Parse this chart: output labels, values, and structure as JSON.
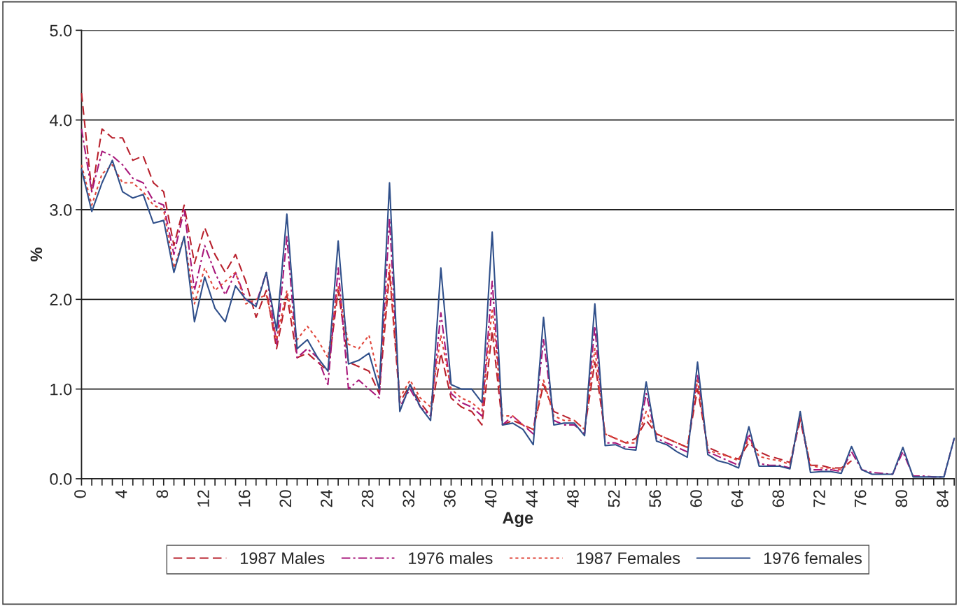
{
  "chart_data": {
    "type": "line",
    "xlabel": "Age",
    "ylabel": "%",
    "x": [
      0,
      1,
      2,
      3,
      4,
      5,
      6,
      7,
      8,
      9,
      10,
      11,
      12,
      13,
      14,
      15,
      16,
      17,
      18,
      19,
      20,
      21,
      22,
      23,
      24,
      25,
      26,
      27,
      28,
      29,
      30,
      31,
      32,
      33,
      34,
      35,
      36,
      37,
      38,
      39,
      40,
      41,
      42,
      43,
      44,
      45,
      46,
      47,
      48,
      49,
      50,
      51,
      52,
      53,
      54,
      55,
      56,
      57,
      58,
      59,
      60,
      61,
      62,
      63,
      64,
      65,
      66,
      67,
      68,
      69,
      70,
      71,
      72,
      73,
      74,
      75,
      76,
      77,
      78,
      79,
      80,
      81,
      82,
      83,
      84,
      85
    ],
    "xlim": [
      0,
      85
    ],
    "xticks": [
      0,
      {
        "value": 1,
        "label": null
      },
      {
        "value": 2,
        "label": null
      },
      {
        "value": 3,
        "label": null
      },
      4,
      {
        "value": 5,
        "label": null
      },
      {
        "value": 6,
        "label": null
      },
      {
        "value": 7,
        "label": null
      },
      8,
      {
        "value": 9,
        "label": null
      },
      {
        "value": 10,
        "label": null
      },
      {
        "value": 11,
        "label": null
      },
      12,
      {
        "value": 13,
        "label": null
      },
      {
        "value": 14,
        "label": null
      },
      {
        "value": 15,
        "label": null
      },
      16,
      {
        "value": 17,
        "label": null
      },
      {
        "value": 18,
        "label": null
      },
      {
        "value": 19,
        "label": null
      },
      20,
      {
        "value": 21,
        "label": null
      },
      {
        "value": 22,
        "label": null
      },
      {
        "value": 23,
        "label": null
      },
      24,
      {
        "value": 25,
        "label": null
      },
      {
        "value": 26,
        "label": null
      },
      {
        "value": 27,
        "label": null
      },
      28,
      {
        "value": 29,
        "label": null
      },
      {
        "value": 30,
        "label": null
      },
      {
        "value": 31,
        "label": null
      },
      32,
      {
        "value": 33,
        "label": null
      },
      {
        "value": 34,
        "label": null
      },
      {
        "value": 35,
        "label": null
      },
      36,
      {
        "value": 37,
        "label": null
      },
      {
        "value": 38,
        "label": null
      },
      {
        "value": 39,
        "label": null
      },
      40,
      {
        "value": 41,
        "label": null
      },
      {
        "value": 42,
        "label": null
      },
      {
        "value": 43,
        "label": null
      },
      44,
      {
        "value": 45,
        "label": null
      },
      {
        "value": 46,
        "label": null
      },
      {
        "value": 47,
        "label": null
      },
      48,
      {
        "value": 49,
        "label": null
      },
      {
        "value": 50,
        "label": null
      },
      {
        "value": 51,
        "label": null
      },
      52,
      {
        "value": 53,
        "label": null
      },
      {
        "value": 54,
        "label": null
      },
      {
        "value": 55,
        "label": null
      },
      56,
      {
        "value": 57,
        "label": null
      },
      {
        "value": 58,
        "label": null
      },
      {
        "value": 59,
        "label": null
      },
      60,
      {
        "value": 61,
        "label": null
      },
      {
        "value": 62,
        "label": null
      },
      {
        "value": 63,
        "label": null
      },
      64,
      {
        "value": 65,
        "label": null
      },
      {
        "value": 66,
        "label": null
      },
      {
        "value": 67,
        "label": null
      },
      68,
      {
        "value": 69,
        "label": null
      },
      {
        "value": 70,
        "label": null
      },
      {
        "value": 71,
        "label": null
      },
      72,
      {
        "value": 73,
        "label": null
      },
      {
        "value": 74,
        "label": null
      },
      {
        "value": 75,
        "label": null
      },
      76,
      {
        "value": 77,
        "label": null
      },
      {
        "value": 78,
        "label": null
      },
      {
        "value": 79,
        "label": null
      },
      80,
      {
        "value": 81,
        "label": null
      },
      {
        "value": 82,
        "label": null
      },
      {
        "value": 83,
        "label": null
      },
      84,
      {
        "value": 85,
        "label": null
      }
    ],
    "ylim": [
      0,
      5
    ],
    "yticks": [
      {
        "value": 0,
        "label": "0.0"
      },
      {
        "value": 1,
        "label": "1.0"
      },
      {
        "value": 2,
        "label": "2.0"
      },
      {
        "value": 3,
        "label": "3.0"
      },
      {
        "value": 4,
        "label": "4.0"
      },
      {
        "value": 5,
        "label": "5.0"
      }
    ],
    "grid": "y",
    "legend": "bottom",
    "marker": "none",
    "series": [
      {
        "name": "1987 Males",
        "color": "#b8202c",
        "line_style": "dashed",
        "x": [
          0,
          1,
          2,
          3,
          4,
          5,
          6,
          7,
          8,
          9,
          10,
          11,
          12,
          13,
          14,
          15,
          16,
          17,
          18,
          19,
          20,
          21,
          22,
          23,
          24,
          25,
          26,
          27,
          28,
          29,
          30,
          31,
          32,
          33,
          34,
          35,
          36,
          37,
          38,
          39,
          40,
          41,
          42,
          43,
          44,
          45,
          46,
          47,
          48,
          49,
          50,
          51,
          52,
          53,
          54,
          55,
          56,
          57,
          58,
          59,
          60,
          61,
          62,
          63,
          64,
          65,
          66,
          67,
          68,
          69,
          70,
          71,
          72,
          73,
          74,
          75
        ],
        "values": [
          4.3,
          3.2,
          3.9,
          3.8,
          3.8,
          3.55,
          3.6,
          3.3,
          3.2,
          2.6,
          3.05,
          2.4,
          2.8,
          2.5,
          2.3,
          2.5,
          2.2,
          1.8,
          2.1,
          1.45,
          2.05,
          1.35,
          1.4,
          1.3,
          1.2,
          2.1,
          1.3,
          1.25,
          1.2,
          0.95,
          2.3,
          0.85,
          1.05,
          0.85,
          0.7,
          1.4,
          0.9,
          0.8,
          0.75,
          0.6,
          1.65,
          0.6,
          0.65,
          0.6,
          0.55,
          1.05,
          0.75,
          0.7,
          0.65,
          0.55,
          1.3,
          0.5,
          0.45,
          0.4,
          0.45,
          0.65,
          0.5,
          0.45,
          0.4,
          0.35,
          1.0,
          0.35,
          0.3,
          0.25,
          0.22,
          0.4,
          0.3,
          0.25,
          0.22,
          0.18,
          0.65,
          0.15,
          0.15,
          0.12,
          0.12,
          0.2
        ]
      },
      {
        "name": "1976 males",
        "color": "#a8177a",
        "line_style": "dashdot",
        "values": [
          3.9,
          3.2,
          3.65,
          3.6,
          3.5,
          3.35,
          3.3,
          3.1,
          3.05,
          2.5,
          3.0,
          2.1,
          2.6,
          2.3,
          2.05,
          2.3,
          2.0,
          1.95,
          2.3,
          1.5,
          2.7,
          1.35,
          1.45,
          1.35,
          1.05,
          2.35,
          1.0,
          1.1,
          1.0,
          0.9,
          2.9,
          0.8,
          1.0,
          0.8,
          0.7,
          1.85,
          0.95,
          0.85,
          0.8,
          0.7,
          2.2,
          0.6,
          0.7,
          0.6,
          0.5,
          1.55,
          0.65,
          0.6,
          0.6,
          0.5,
          1.7,
          0.4,
          0.4,
          0.35,
          0.35,
          0.95,
          0.45,
          0.4,
          0.35,
          0.3,
          1.15,
          0.3,
          0.25,
          0.2,
          0.15,
          0.5,
          0.17,
          0.15,
          0.15,
          0.12,
          0.7,
          0.1,
          0.1,
          0.1,
          0.08,
          0.3,
          0.1,
          0.07,
          0.06,
          0.05,
          0.3,
          0.03,
          0.03,
          0.02,
          0.02,
          0.45
        ]
      },
      {
        "name": "1987 Females",
        "color": "#e0453a",
        "line_style": "dotted",
        "x": [
          0,
          1,
          2,
          3,
          4,
          5,
          6,
          7,
          8,
          9,
          10,
          11,
          12,
          13,
          14,
          15,
          16,
          17,
          18,
          19,
          20,
          21,
          22,
          23,
          24,
          25,
          26,
          27,
          28,
          29,
          30,
          31,
          32,
          33,
          34,
          35,
          36,
          37,
          38,
          39,
          40,
          41,
          42,
          43,
          44,
          45,
          46,
          47,
          48,
          49,
          50,
          51,
          52,
          53,
          54,
          55,
          56,
          57,
          58,
          59,
          60,
          61,
          62,
          63,
          64,
          65,
          66,
          67,
          68,
          69,
          70,
          71,
          72,
          73,
          74,
          75
        ],
        "values": [
          3.5,
          3.05,
          3.4,
          3.5,
          3.3,
          3.3,
          3.2,
          3.05,
          3.0,
          2.35,
          2.7,
          1.95,
          2.35,
          2.1,
          2.2,
          2.3,
          1.95,
          2.0,
          2.05,
          1.55,
          2.1,
          1.55,
          1.7,
          1.55,
          1.35,
          2.15,
          1.5,
          1.45,
          1.6,
          1.1,
          2.4,
          0.9,
          1.1,
          0.9,
          0.8,
          1.6,
          1.0,
          0.9,
          0.85,
          0.75,
          1.9,
          0.7,
          0.7,
          0.6,
          0.55,
          1.1,
          0.7,
          0.65,
          0.65,
          0.55,
          1.45,
          0.5,
          0.45,
          0.4,
          0.4,
          0.75,
          0.5,
          0.45,
          0.4,
          0.35,
          1.1,
          0.32,
          0.28,
          0.25,
          0.2,
          0.45,
          0.25,
          0.22,
          0.2,
          0.16,
          0.7,
          0.15,
          0.12,
          0.12,
          0.1,
          0.2
        ]
      },
      {
        "name": "1976 females",
        "color": "#2f4f8a",
        "line_style": "solid",
        "values": [
          3.45,
          2.98,
          3.3,
          3.55,
          3.2,
          3.13,
          3.17,
          2.85,
          2.88,
          2.3,
          2.7,
          1.75,
          2.25,
          1.9,
          1.75,
          2.15,
          2.0,
          1.92,
          2.3,
          1.65,
          2.95,
          1.45,
          1.55,
          1.35,
          1.2,
          2.65,
          1.28,
          1.32,
          1.4,
          1.0,
          3.3,
          0.75,
          1.05,
          0.8,
          0.65,
          2.35,
          1.05,
          1.0,
          1.0,
          0.85,
          2.75,
          0.6,
          0.62,
          0.55,
          0.38,
          1.8,
          0.6,
          0.62,
          0.62,
          0.48,
          1.95,
          0.37,
          0.38,
          0.33,
          0.32,
          1.08,
          0.42,
          0.38,
          0.3,
          0.24,
          1.3,
          0.27,
          0.2,
          0.17,
          0.12,
          0.58,
          0.14,
          0.14,
          0.14,
          0.11,
          0.75,
          0.07,
          0.08,
          0.08,
          0.06,
          0.36,
          0.1,
          0.05,
          0.05,
          0.05,
          0.35,
          0.02,
          0.02,
          0.02,
          0.02,
          0.45
        ]
      }
    ]
  }
}
